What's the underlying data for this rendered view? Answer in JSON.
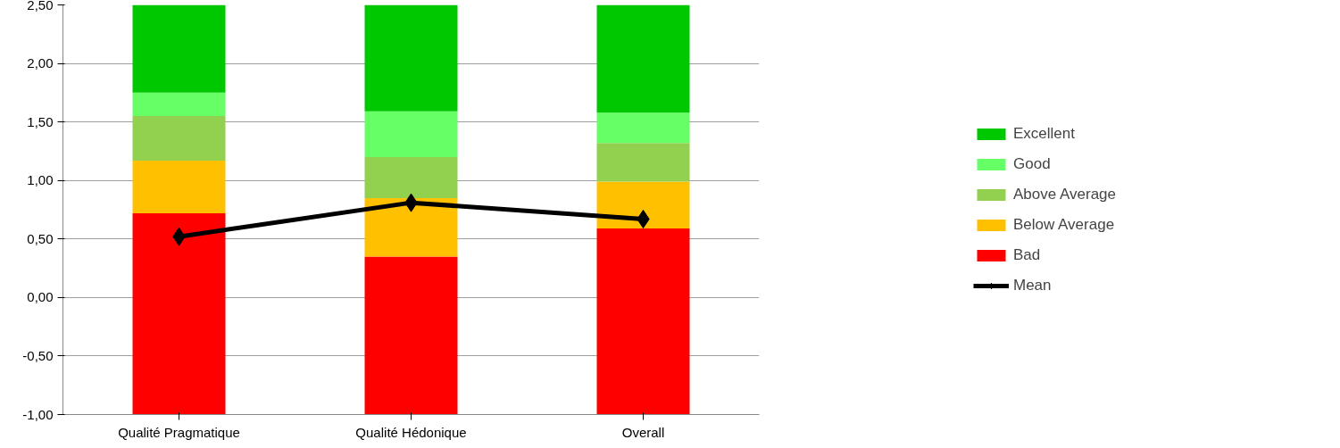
{
  "chart_data": {
    "type": "bar",
    "categories": [
      "Qualité Pragmatique",
      "Qualité Hédonique",
      "Overall"
    ],
    "series": [
      {
        "name": "Bad",
        "color": "#ff0000",
        "base": [
          -1,
          -1,
          -1
        ],
        "values": [
          1.72,
          1.35,
          1.59
        ]
      },
      {
        "name": "Below Average",
        "color": "#ffc000",
        "base": [
          0.72,
          0.35,
          0.59
        ],
        "values": [
          0.45,
          0.5,
          0.4
        ]
      },
      {
        "name": "Above Average",
        "color": "#92d050",
        "base": [
          1.17,
          0.85,
          0.99
        ],
        "values": [
          0.38,
          0.35,
          0.33
        ]
      },
      {
        "name": "Good",
        "color": "#66ff66",
        "base": [
          1.55,
          1.2,
          1.32
        ],
        "values": [
          0.2,
          0.39,
          0.26
        ]
      },
      {
        "name": "Excellent",
        "color": "#00c800",
        "base": [
          1.75,
          1.59,
          1.58
        ],
        "values": [
          0.75,
          0.91,
          0.92
        ]
      },
      {
        "name": "Mean",
        "color": "#000000",
        "type": "line",
        "marker": "diamond",
        "values": [
          0.52,
          0.81,
          0.67
        ]
      }
    ],
    "ylim": [
      -1,
      2.5
    ],
    "yticks": [
      {
        "value": -1,
        "label": "-1,00"
      },
      {
        "value": -0.5,
        "label": "-0,50"
      },
      {
        "value": 0,
        "label": "0,00"
      },
      {
        "value": 0.5,
        "label": "0,50"
      },
      {
        "value": 1,
        "label": "1,00"
      },
      {
        "value": 1.5,
        "label": "1,50"
      },
      {
        "value": 2,
        "label": "2,00"
      },
      {
        "value": 2.5,
        "label": "2,50"
      }
    ],
    "grid": "y",
    "legend": "right"
  }
}
